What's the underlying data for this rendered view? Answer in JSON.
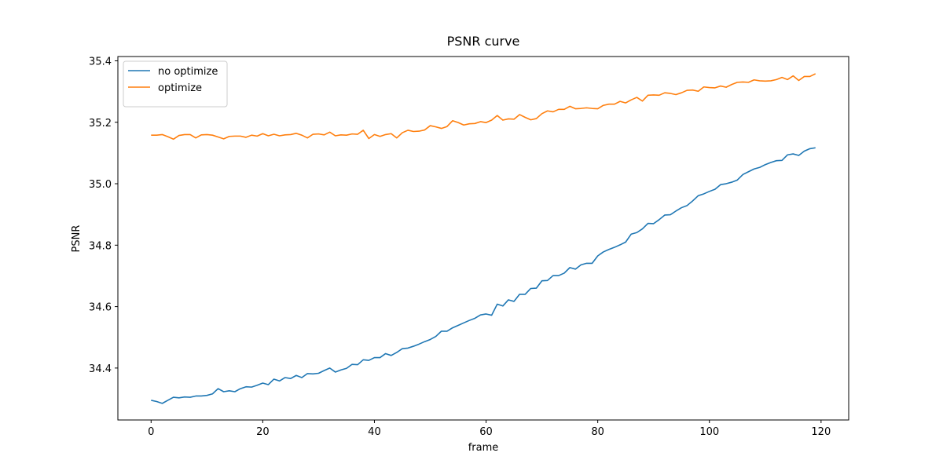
{
  "chart_data": {
    "type": "line",
    "title": "PSNR curve",
    "x_label": "frame",
    "y_label": "PSNR",
    "x": [
      0,
      1,
      2,
      3,
      4,
      5,
      6,
      7,
      8,
      9,
      10,
      11,
      12,
      13,
      14,
      15,
      16,
      17,
      18,
      19,
      20,
      21,
      22,
      23,
      24,
      25,
      26,
      27,
      28,
      29,
      30,
      31,
      32,
      33,
      34,
      35,
      36,
      37,
      38,
      39,
      40,
      41,
      42,
      43,
      44,
      45,
      46,
      47,
      48,
      49,
      50,
      51,
      52,
      53,
      54,
      55,
      56,
      57,
      58,
      59,
      60,
      61,
      62,
      63,
      64,
      65,
      66,
      67,
      68,
      69,
      70,
      71,
      72,
      73,
      74,
      75,
      76,
      77,
      78,
      79,
      80,
      81,
      82,
      83,
      84,
      85,
      86,
      87,
      88,
      89,
      90,
      91,
      92,
      93,
      94,
      95,
      96,
      97,
      98,
      99,
      100,
      101,
      102,
      103,
      104,
      105,
      106,
      107,
      108,
      109,
      110,
      111,
      112,
      113,
      114,
      115,
      116,
      117,
      118,
      119
    ],
    "series": [
      {
        "name": "no optimize",
        "color": "#1f77b4",
        "values": [
          34.295,
          34.291,
          34.285,
          34.295,
          34.305,
          34.303,
          34.306,
          34.305,
          34.309,
          34.309,
          34.311,
          34.316,
          34.333,
          34.323,
          34.326,
          34.323,
          34.333,
          34.339,
          34.338,
          34.344,
          34.351,
          34.346,
          34.364,
          34.358,
          34.369,
          34.366,
          34.376,
          34.369,
          34.382,
          34.381,
          34.383,
          34.392,
          34.4,
          34.387,
          34.394,
          34.399,
          34.412,
          34.411,
          34.427,
          34.425,
          34.434,
          34.434,
          34.447,
          34.441,
          34.451,
          34.463,
          34.465,
          34.471,
          34.478,
          34.486,
          34.493,
          34.503,
          34.52,
          34.52,
          34.531,
          34.539,
          34.547,
          34.555,
          34.562,
          34.573,
          34.576,
          34.572,
          34.608,
          34.602,
          34.622,
          34.617,
          34.64,
          34.64,
          34.659,
          34.66,
          34.684,
          34.685,
          34.701,
          34.701,
          34.709,
          34.727,
          34.722,
          34.736,
          34.741,
          34.741,
          34.765,
          34.778,
          34.786,
          34.793,
          34.801,
          34.81,
          34.836,
          34.841,
          34.853,
          34.871,
          34.87,
          34.883,
          34.898,
          34.899,
          34.911,
          34.922,
          34.929,
          34.944,
          34.961,
          34.967,
          34.975,
          34.982,
          34.997,
          35.0,
          35.005,
          35.012,
          35.03,
          35.039,
          35.048,
          35.053,
          35.062,
          35.069,
          35.075,
          35.076,
          35.094,
          35.097,
          35.092,
          35.106,
          35.114,
          35.117
        ]
      },
      {
        "name": "optimize",
        "color": "#ff7f0e",
        "values": [
          35.158,
          35.158,
          35.16,
          35.153,
          35.145,
          35.157,
          35.16,
          35.16,
          35.149,
          35.159,
          35.16,
          35.158,
          35.152,
          35.146,
          35.154,
          35.155,
          35.155,
          35.151,
          35.158,
          35.155,
          35.163,
          35.156,
          35.161,
          35.156,
          35.159,
          35.16,
          35.164,
          35.158,
          35.149,
          35.161,
          35.162,
          35.159,
          35.168,
          35.156,
          35.159,
          35.158,
          35.162,
          35.161,
          35.174,
          35.147,
          35.16,
          35.154,
          35.16,
          35.163,
          35.149,
          35.166,
          35.174,
          35.17,
          35.171,
          35.175,
          35.189,
          35.185,
          35.18,
          35.186,
          35.205,
          35.199,
          35.191,
          35.195,
          35.196,
          35.202,
          35.199,
          35.207,
          35.222,
          35.207,
          35.211,
          35.21,
          35.225,
          35.216,
          35.208,
          35.212,
          35.228,
          35.237,
          35.234,
          35.242,
          35.242,
          35.252,
          35.244,
          35.245,
          35.247,
          35.245,
          35.244,
          35.255,
          35.259,
          35.259,
          35.268,
          35.263,
          35.273,
          35.281,
          35.269,
          35.288,
          35.289,
          35.288,
          35.296,
          35.294,
          35.29,
          35.296,
          35.304,
          35.305,
          35.301,
          35.315,
          35.313,
          35.312,
          35.318,
          35.314,
          35.323,
          35.33,
          35.331,
          35.33,
          35.338,
          35.335,
          35.334,
          35.335,
          35.339,
          35.346,
          35.339,
          35.351,
          35.336,
          35.349,
          35.349,
          35.358
        ]
      }
    ],
    "xlim": [
      -5.95,
      124.95
    ],
    "ylim": [
      34.231,
      35.414
    ],
    "xticks": [
      0,
      20,
      40,
      60,
      80,
      100,
      120
    ],
    "yticks": [
      34.4,
      34.6,
      34.8,
      {
        "value": 35,
        "label": "35.0"
      },
      35.2,
      35.4
    ],
    "grid": false,
    "legend": "upper left"
  }
}
